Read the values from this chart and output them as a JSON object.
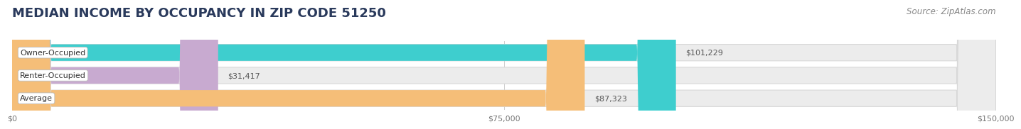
{
  "title": "MEDIAN INCOME BY OCCUPANCY IN ZIP CODE 51250",
  "source": "Source: ZipAtlas.com",
  "categories": [
    "Owner-Occupied",
    "Renter-Occupied",
    "Average"
  ],
  "values": [
    101229,
    31417,
    87323
  ],
  "labels": [
    "$101,229",
    "$31,417",
    "$87,323"
  ],
  "bar_colors": [
    "#3ecece",
    "#c8aad0",
    "#f5be78"
  ],
  "background_color": "#ffffff",
  "bar_bg_color": "#ececec",
  "xlim": [
    0,
    150000
  ],
  "xticks": [
    0,
    75000,
    150000
  ],
  "xtick_labels": [
    "$0",
    "$75,000",
    "$150,000"
  ],
  "title_fontsize": 13,
  "source_fontsize": 8.5,
  "label_fontsize": 8,
  "category_fontsize": 8
}
